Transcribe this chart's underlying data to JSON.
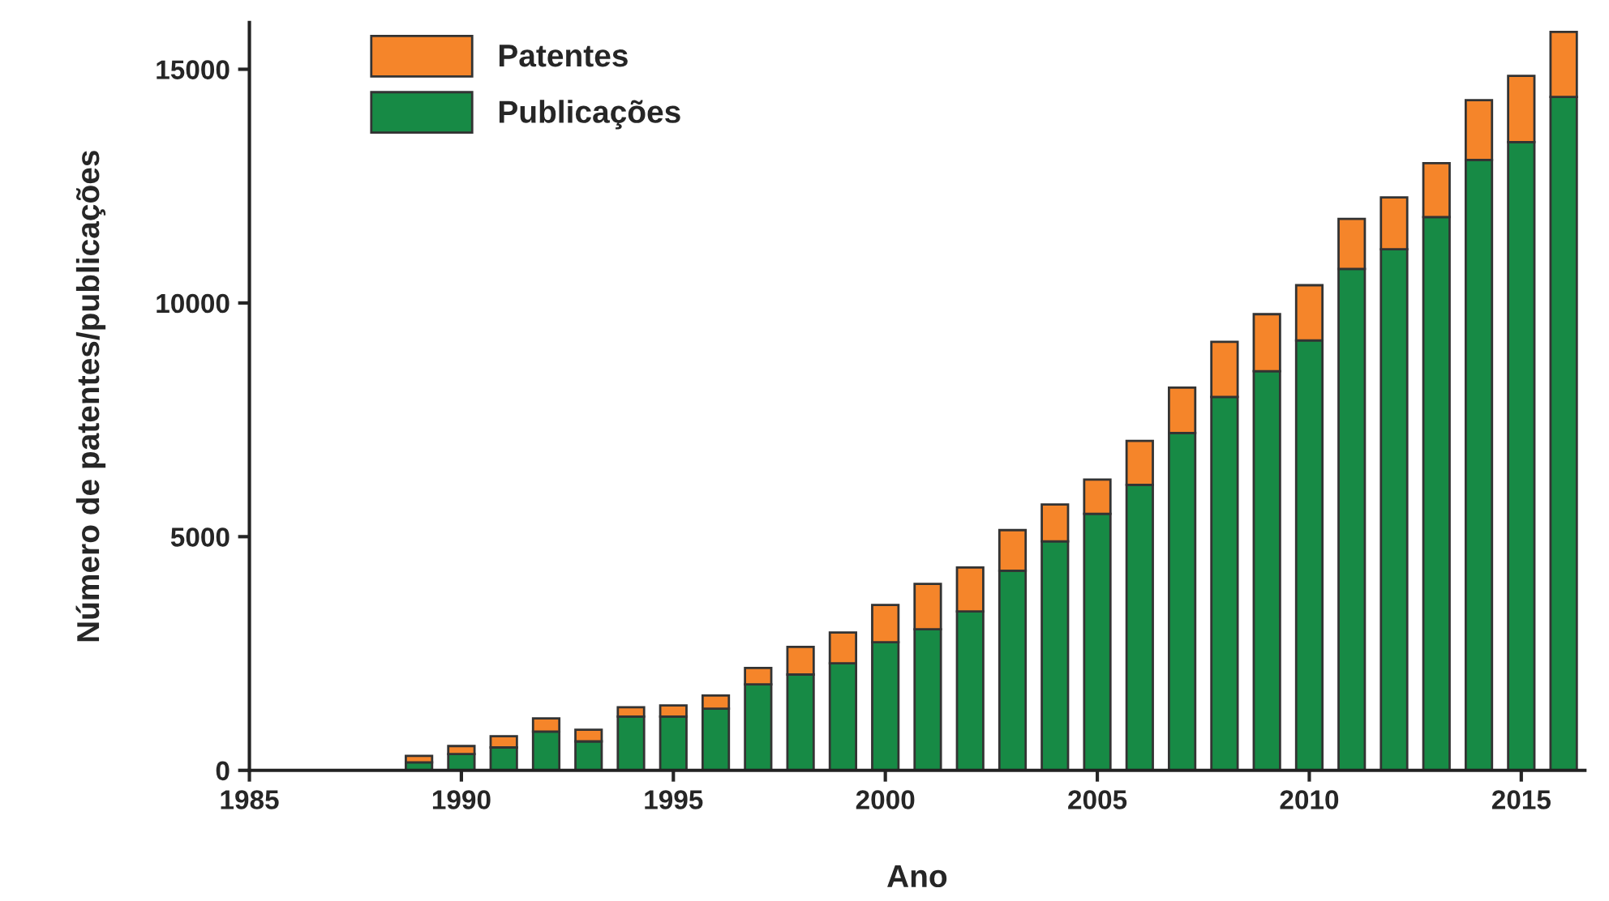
{
  "chart_data": {
    "type": "bar",
    "stacked": true,
    "xlabel": "Ano",
    "ylabel": "Número de patentes/publicações",
    "x": [
      1989,
      1990,
      1991,
      1992,
      1993,
      1994,
      1995,
      1996,
      1997,
      1998,
      1999,
      2000,
      2001,
      2002,
      2003,
      2004,
      2005,
      2006,
      2007,
      2008,
      2009,
      2010,
      2011,
      2012,
      2013,
      2014,
      2015,
      2016
    ],
    "series": [
      {
        "name": "Publicações",
        "color": "#178a45",
        "values": [
          170,
          350,
          490,
          830,
          620,
          1150,
          1150,
          1320,
          1840,
          2050,
          2290,
          2740,
          3020,
          3400,
          4270,
          4900,
          5490,
          6110,
          7220,
          7990,
          8540,
          9200,
          10730,
          11150,
          11840,
          13060,
          13440,
          14410
        ]
      },
      {
        "name": "Patentes",
        "color": "#f5852a",
        "values": [
          140,
          170,
          240,
          280,
          250,
          200,
          240,
          280,
          350,
          590,
          660,
          800,
          970,
          940,
          870,
          790,
          730,
          940,
          970,
          1180,
          1220,
          1180,
          1070,
          1110,
          1150,
          1280,
          1420,
          1390
        ]
      }
    ],
    "xlim": [
      1985,
      2016.5
    ],
    "xticks": [
      1985,
      1990,
      1995,
      2000,
      2005,
      2010,
      2015
    ],
    "ylim": [
      0,
      16000
    ],
    "yticks": [
      0,
      5000,
      10000,
      15000
    ],
    "grid": false,
    "legend": "top left"
  }
}
